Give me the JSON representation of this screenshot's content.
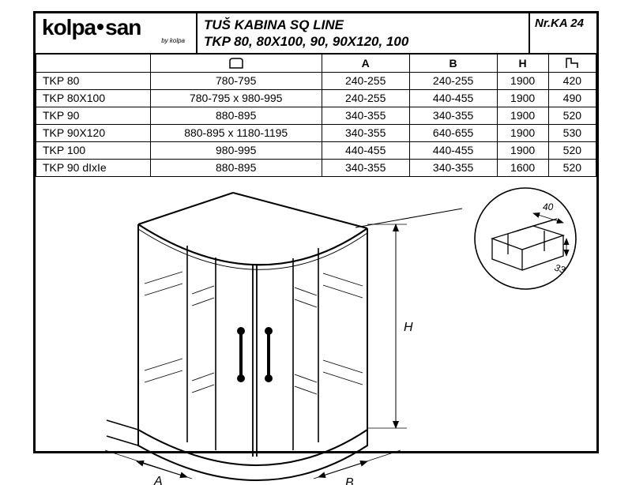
{
  "brand": {
    "name_a": "kolpa",
    "name_b": "san",
    "byline": "by kolpa"
  },
  "title": {
    "line1": "TUŠ KABINA SQ  LINE",
    "line2": "TKP 80, 80X100, 90, 90X120, 100"
  },
  "doc_ref": {
    "prefix": "Nr.",
    "code": "KA 24"
  },
  "table": {
    "columns": [
      "",
      "",
      "A",
      "B",
      "H",
      ""
    ],
    "rows": [
      {
        "model": "TKP 80",
        "dim": "780-795",
        "a": "240-255",
        "b": "240-255",
        "h": "1900",
        "x": "420"
      },
      {
        "model": "TKP 80X100",
        "dim": "780-795 x 980-995",
        "a": "240-255",
        "b": "440-455",
        "h": "1900",
        "x": "490"
      },
      {
        "model": "TKP 90",
        "dim": "880-895",
        "a": "340-355",
        "b": "340-355",
        "h": "1900",
        "x": "520"
      },
      {
        "model": "TKP 90X120",
        "dim": "880-895 x 1180-1195",
        "a": "340-355",
        "b": "640-655",
        "h": "1900",
        "x": "530"
      },
      {
        "model": "TKP 100",
        "dim": "980-995",
        "a": "440-455",
        "b": "440-455",
        "h": "1900",
        "x": "520"
      },
      {
        "model": "TKP 90 dIxIe",
        "dim": "880-895",
        "a": "340-355",
        "b": "340-355",
        "h": "1600",
        "x": "520"
      }
    ]
  },
  "detail": {
    "w": "40",
    "d": "33"
  },
  "dims": {
    "A": "A",
    "B": "B",
    "H": "H"
  },
  "style": {
    "stroke": "#000000",
    "bg": "#ffffff",
    "font": "Arial",
    "title_fontsize": 17,
    "table_fontsize": 14,
    "line_thin": 1,
    "line_med": 1.5,
    "line_thick": 2.2
  }
}
